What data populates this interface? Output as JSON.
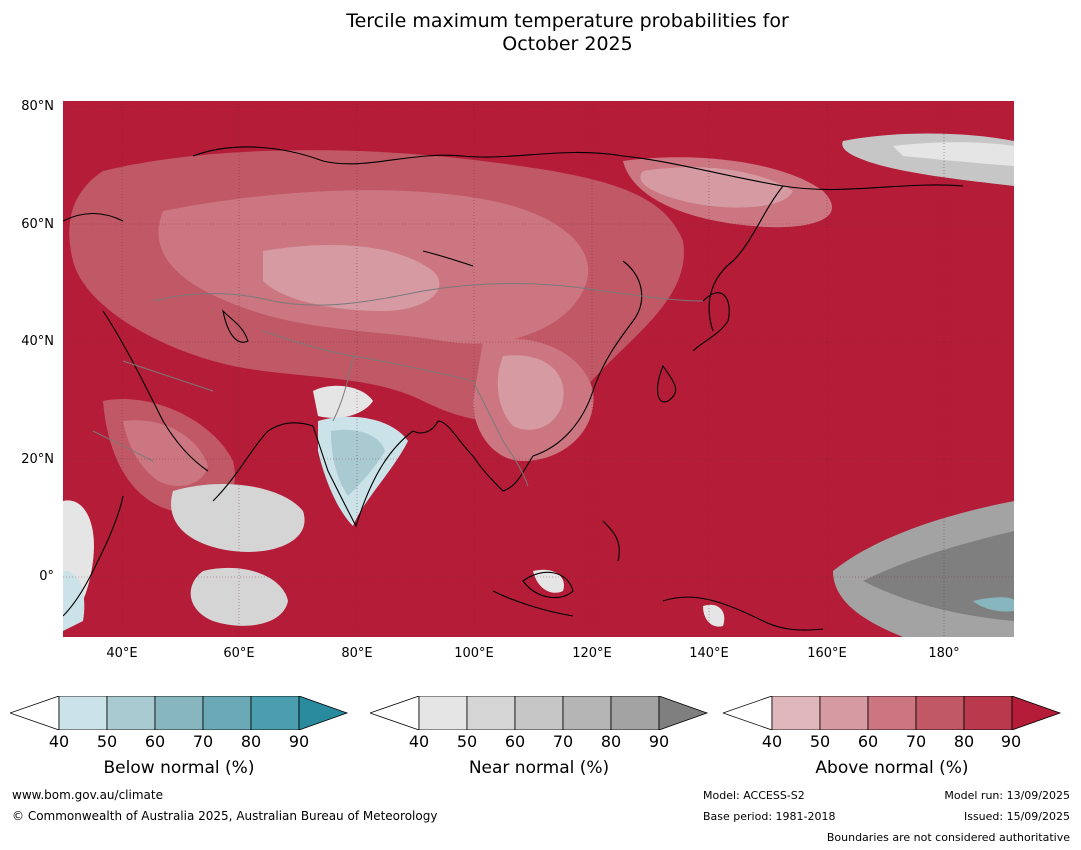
{
  "title_line1": "Tercile maximum temperature probabilities for",
  "title_line2": "October 2025",
  "map": {
    "lat_labels": [
      "80°N",
      "60°N",
      "40°N",
      "20°N",
      "0°"
    ],
    "lon_labels": [
      "40°E",
      "60°E",
      "80°E",
      "100°E",
      "120°E",
      "140°E",
      "160°E",
      "180°"
    ],
    "extent": {
      "lon_min": 30,
      "lon_max": 192,
      "lat_min": -10,
      "lat_max": 80
    }
  },
  "colorbars": [
    {
      "title": "Below normal (%)",
      "ticks": [
        "40",
        "50",
        "60",
        "70",
        "80",
        "90"
      ],
      "colors": [
        "#cbe3e8",
        "#a9cad0",
        "#88b6bf",
        "#6aa9b5",
        "#4a9eae",
        "#2a8a9e"
      ]
    },
    {
      "title": "Near normal (%)",
      "ticks": [
        "40",
        "50",
        "60",
        "70",
        "80",
        "90"
      ],
      "colors": [
        "#e5e5e5",
        "#d5d5d5",
        "#c6c6c6",
        "#b5b5b5",
        "#a3a3a3",
        "#7f7f7f"
      ]
    },
    {
      "title": "Above normal (%)",
      "ticks": [
        "40",
        "50",
        "60",
        "70",
        "80",
        "90"
      ],
      "colors": [
        "#e0b6bd",
        "#d59aa2",
        "#cb7680",
        "#c05866",
        "#b93a4c",
        "#b41c38"
      ]
    }
  ],
  "footer": {
    "website": "www.bom.gov.au/climate",
    "copyright": "© Commonwealth of Australia 2025, Australian Bureau of Meteorology",
    "model": "Model: ACCESS-S2",
    "base_period": "Base period: 1981-2018",
    "model_run": "Model run: 13/09/2025",
    "issued": "Issued: 15/09/2025",
    "boundaries": "Boundaries are not considered authoritative"
  }
}
